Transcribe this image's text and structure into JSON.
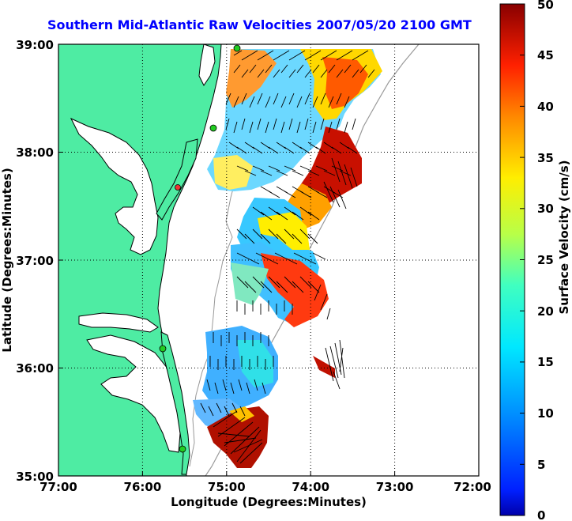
{
  "title": "Southern Mid-Atlantic Raw Velocities 2007/05/20 2100 GMT",
  "x_axis": {
    "label": "Longitude (Degrees:Minutes)",
    "ticks": [
      "77:00",
      "76:00",
      "75:00",
      "74:00",
      "73:00",
      "72:00"
    ],
    "range": [
      "77:00",
      "72:00"
    ]
  },
  "y_axis": {
    "label": "Latitude (Degrees:Minutes)",
    "ticks": [
      "39:00",
      "38:00",
      "37:00",
      "36:00",
      "35:00"
    ],
    "range": [
      "35:00",
      "39:00"
    ]
  },
  "colorbar": {
    "label": "Surface Velocity (cm/s)",
    "min": 0,
    "max": 50,
    "ticks": [
      "0",
      "5",
      "10",
      "15",
      "20",
      "25",
      "30",
      "35",
      "40",
      "45",
      "50"
    ],
    "colormap": "jet"
  },
  "colors": {
    "land": "#4eeca3",
    "coast": "#000000",
    "title": "#0000ff",
    "station_marker": "#22cc22",
    "station_marker_red": "#ee3333",
    "grid": "#000000"
  },
  "grid": "dotted",
  "stations": [
    "green",
    "green",
    "green",
    "green",
    "red"
  ]
}
